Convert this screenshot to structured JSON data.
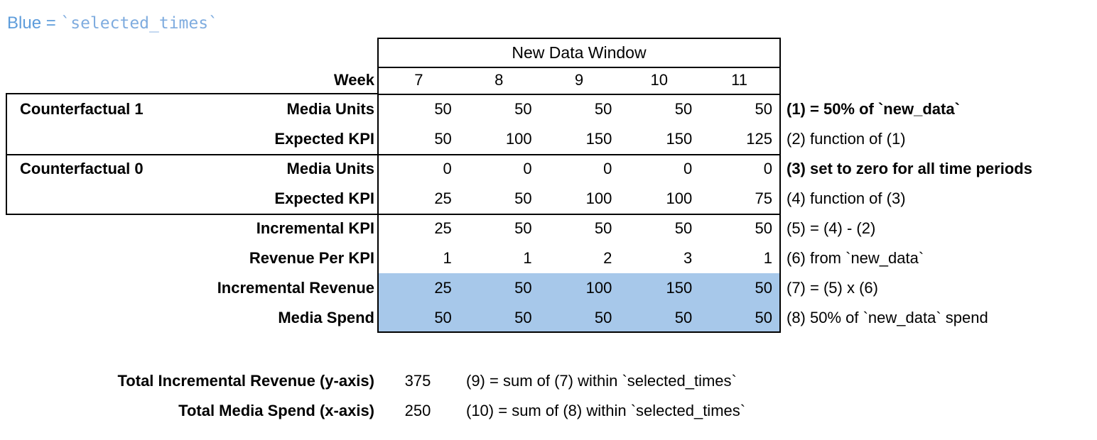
{
  "legend": {
    "prefix": "Blue = ",
    "code": "`selected_times`"
  },
  "table": {
    "window_title": "New Data Window",
    "week_label": "Week",
    "weeks": [
      "7",
      "8",
      "9",
      "10",
      "11"
    ],
    "group_labels": [
      "Counterfactual 1",
      "Counterfactual 0"
    ],
    "rows": [
      {
        "label": "Media Units",
        "values": [
          "50",
          "50",
          "50",
          "50",
          "50"
        ],
        "note": "(1) = 50% of `new_data`"
      },
      {
        "label": "Expected KPI",
        "values": [
          "50",
          "100",
          "150",
          "150",
          "125"
        ],
        "note": "(2) function of (1)"
      },
      {
        "label": "Media Units",
        "values": [
          "0",
          "0",
          "0",
          "0",
          "0"
        ],
        "note": "(3) set to zero for all time periods"
      },
      {
        "label": "Expected KPI",
        "values": [
          "25",
          "50",
          "100",
          "100",
          "75"
        ],
        "note": "(4) function of (3)"
      },
      {
        "label": "Incremental KPI",
        "values": [
          "25",
          "50",
          "50",
          "50",
          "50"
        ],
        "note": "(5) = (4) - (2)"
      },
      {
        "label": "Revenue Per KPI",
        "values": [
          "1",
          "1",
          "2",
          "3",
          "1"
        ],
        "note": "(6) from `new_data`"
      },
      {
        "label": "Incremental Revenue",
        "values": [
          "25",
          "50",
          "100",
          "150",
          "50"
        ],
        "note": "(7) = (5) x (6)"
      },
      {
        "label": "Media Spend",
        "values": [
          "50",
          "50",
          "50",
          "50",
          "50"
        ],
        "note": "(8) 50% of `new_data` spend"
      }
    ]
  },
  "totals": [
    {
      "label": "Total Incremental Revenue (y-axis)",
      "value": "375",
      "note": "(9) = sum of (7) within `selected_times`"
    },
    {
      "label": "Total Media Spend (x-axis)",
      "value": "250",
      "note": "(10) = sum of (8) within `selected_times`"
    }
  ],
  "colors": {
    "highlight_blue": "#A7C8EA",
    "legend_blue": "#5D9CDB",
    "legend_code_blue": "#7FACDF",
    "border_black": "#000000"
  }
}
